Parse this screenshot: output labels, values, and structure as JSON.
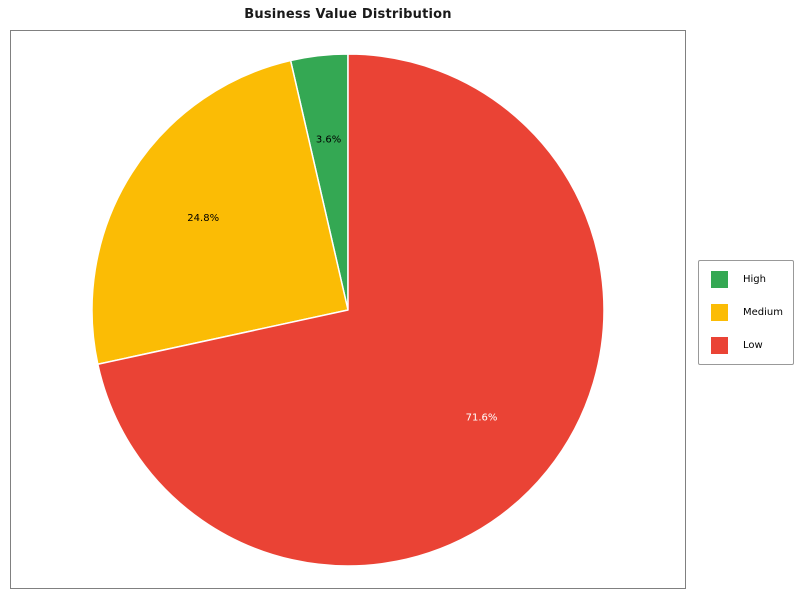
{
  "figure": {
    "background_color": "#ffffff",
    "axes_border_color": "#808080",
    "legend_border_color": "#999999"
  },
  "chart_data": {
    "type": "pie",
    "title": "Business Value Distribution",
    "categories": [
      "High",
      "Medium",
      "Low"
    ],
    "values": [
      3.6,
      24.8,
      71.6
    ],
    "unit": "percent",
    "slices": [
      {
        "label": "High",
        "value": 3.6,
        "pct_text": "3.6%",
        "color": "#34a853",
        "text_color": "#000000"
      },
      {
        "label": "Medium",
        "value": 24.8,
        "pct_text": "24.8%",
        "color": "#fbbc05",
        "text_color": "#000000"
      },
      {
        "label": "Low",
        "value": 71.6,
        "pct_text": "71.6%",
        "color": "#ea4335",
        "text_color": "#ffffff"
      }
    ],
    "start_angle_deg": 90,
    "counterclockwise": true,
    "pct_distance": 0.67,
    "wedge_edge_color": "#ffffff",
    "legend_position": "center right",
    "grid": false
  }
}
